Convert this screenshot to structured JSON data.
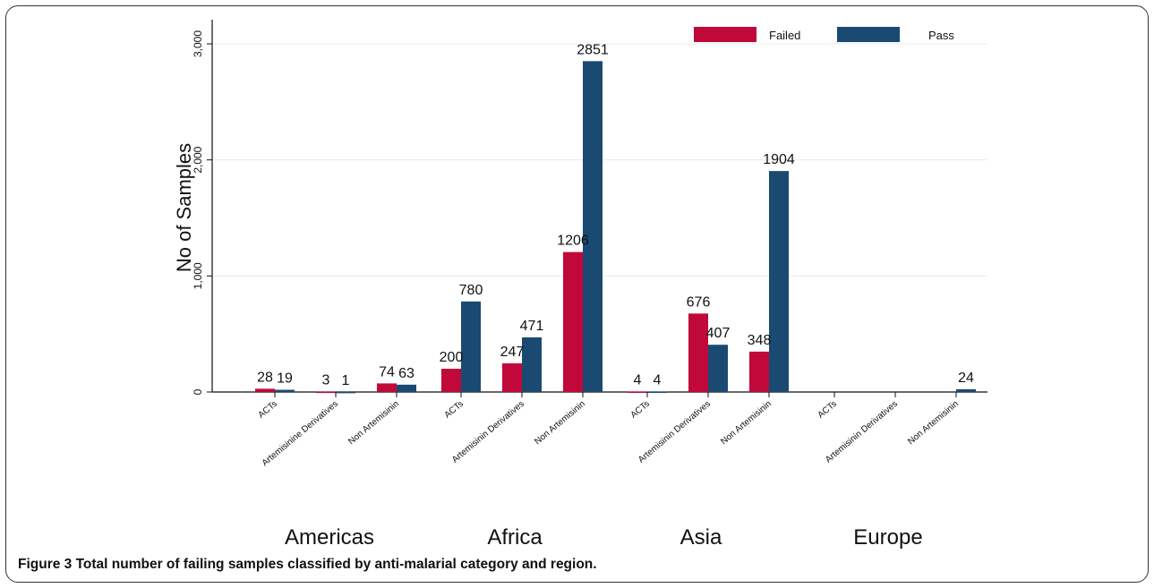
{
  "figure": {
    "label": "Figure 3",
    "caption": "Total number of failing samples classified by anti-malarial category and region."
  },
  "colors": {
    "failed": "#c0093a",
    "pass": "#1a4a72"
  },
  "chart_data": {
    "type": "bar",
    "ylabel": "No of Samples",
    "ylim": [
      0,
      3000
    ],
    "yticks": [
      0,
      1000,
      2000,
      3000
    ],
    "ytick_labels": [
      "0",
      "1,000",
      "2,000",
      "3,000"
    ],
    "grid": true,
    "legend_position": "top-right",
    "groups": [
      "Americas",
      "Africa",
      "Asia",
      "Europe"
    ],
    "categories": [
      "ACTs",
      "Artemisinine Derivatives",
      "Non Artemisinin",
      "ACTs",
      "Artemisinin Derivatives",
      "Non Artemisinin",
      "ACTs",
      "Artemisinin Derivatives",
      "Non Artemisinin",
      "ACTs",
      "Artemisinin Derivatives",
      "Non Artemisinin"
    ],
    "series": [
      {
        "name": "Failed",
        "values": [
          28,
          3,
          74,
          200,
          247,
          1206,
          4,
          676,
          348,
          0,
          0,
          0
        ],
        "labels": [
          "28",
          "3",
          "74",
          "200",
          "247",
          "1206",
          "4",
          "676",
          "348",
          "",
          "",
          ""
        ]
      },
      {
        "name": "Pass",
        "values": [
          19,
          1,
          63,
          780,
          471,
          2851,
          4,
          407,
          1904,
          0,
          0,
          24
        ],
        "labels": [
          "19",
          "1",
          "63",
          "780",
          "471",
          "2851",
          "4",
          "407",
          "1904",
          "",
          "",
          "24"
        ]
      }
    ]
  }
}
